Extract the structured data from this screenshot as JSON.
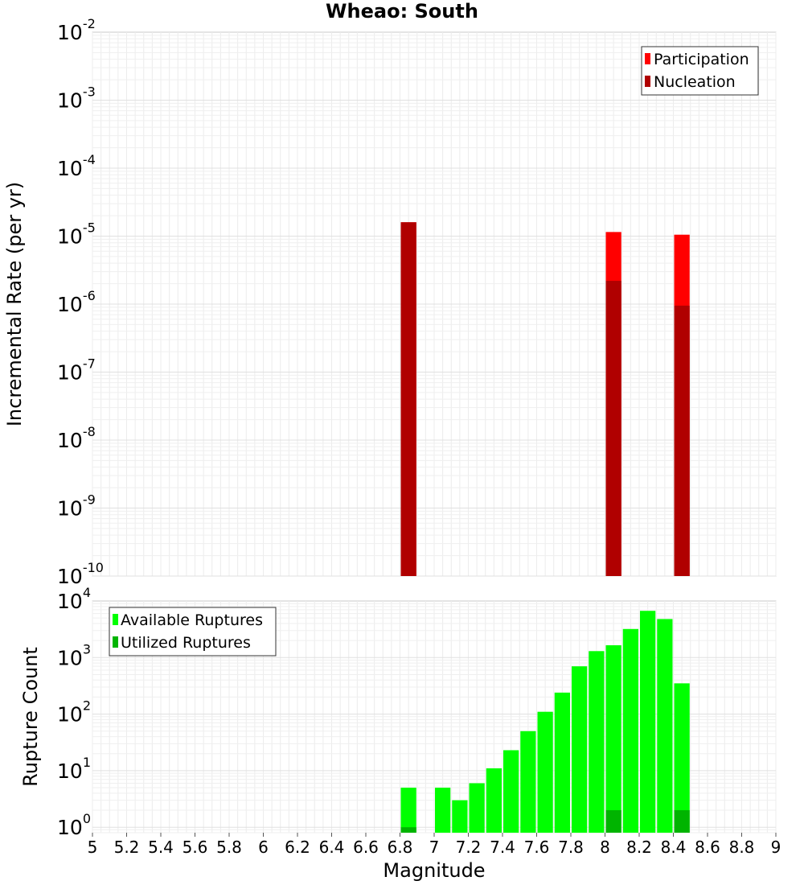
{
  "chart_data": [
    {
      "type": "bar",
      "title": "Wheao: South",
      "xlabel": "",
      "ylabel": "Incremental Rate (per yr)",
      "yscale": "log",
      "ylim": [
        1e-10,
        0.01
      ],
      "xlim": [
        5,
        9
      ],
      "bin_width": 0.1,
      "grid": true,
      "legend_position": "top-right",
      "ytick_labels": [
        {
          "base": "10",
          "exp": "-10"
        },
        {
          "base": "10",
          "exp": "-9"
        },
        {
          "base": "10",
          "exp": "-8"
        },
        {
          "base": "10",
          "exp": "-7"
        },
        {
          "base": "10",
          "exp": "-6"
        },
        {
          "base": "10",
          "exp": "-5"
        },
        {
          "base": "10",
          "exp": "-4"
        },
        {
          "base": "10",
          "exp": "-3"
        },
        {
          "base": "10",
          "exp": "-2"
        }
      ],
      "series": [
        {
          "name": "Participation",
          "color": "#ff0000",
          "x": [
            6.85,
            8.05,
            8.45
          ],
          "values": [
            1.6e-05,
            1.15e-05,
            1.05e-05
          ]
        },
        {
          "name": "Nucleation",
          "color": "#b00000",
          "x": [
            6.85,
            8.05,
            8.45
          ],
          "values": [
            1.6e-05,
            2.2e-06,
            9.5e-07
          ]
        }
      ]
    },
    {
      "type": "bar",
      "xlabel": "Magnitude",
      "ylabel": "Rupture Count",
      "yscale": "log",
      "ylim": [
        0.8,
        10000
      ],
      "xlim": [
        5,
        9
      ],
      "bin_width": 0.1,
      "grid": true,
      "legend_position": "top-left",
      "ytick_labels": [
        {
          "base": "10",
          "exp": "0"
        },
        {
          "base": "10",
          "exp": "1"
        },
        {
          "base": "10",
          "exp": "2"
        },
        {
          "base": "10",
          "exp": "3"
        },
        {
          "base": "10",
          "exp": "4"
        }
      ],
      "xtick_labels": [
        "5",
        "5.2",
        "5.4",
        "5.6",
        "5.8",
        "6",
        "6.2",
        "6.4",
        "6.6",
        "6.8",
        "7",
        "7.2",
        "7.4",
        "7.6",
        "7.8",
        "8",
        "8.2",
        "8.4",
        "8.6",
        "8.8",
        "9"
      ],
      "series": [
        {
          "name": "Available Ruptures",
          "color": "#00ff00",
          "x": [
            6.85,
            7.05,
            7.15,
            7.25,
            7.35,
            7.45,
            7.55,
            7.65,
            7.75,
            7.85,
            7.95,
            8.05,
            8.15,
            8.25,
            8.35,
            8.45
          ],
          "values": [
            5,
            5,
            3,
            6,
            11,
            23,
            50,
            110,
            240,
            700,
            1300,
            1650,
            3200,
            6700,
            4800,
            350
          ]
        },
        {
          "name": "Utilized Ruptures",
          "color": "#00b400",
          "x": [
            6.85,
            8.05,
            8.45
          ],
          "values": [
            1,
            2,
            2
          ]
        }
      ]
    }
  ]
}
